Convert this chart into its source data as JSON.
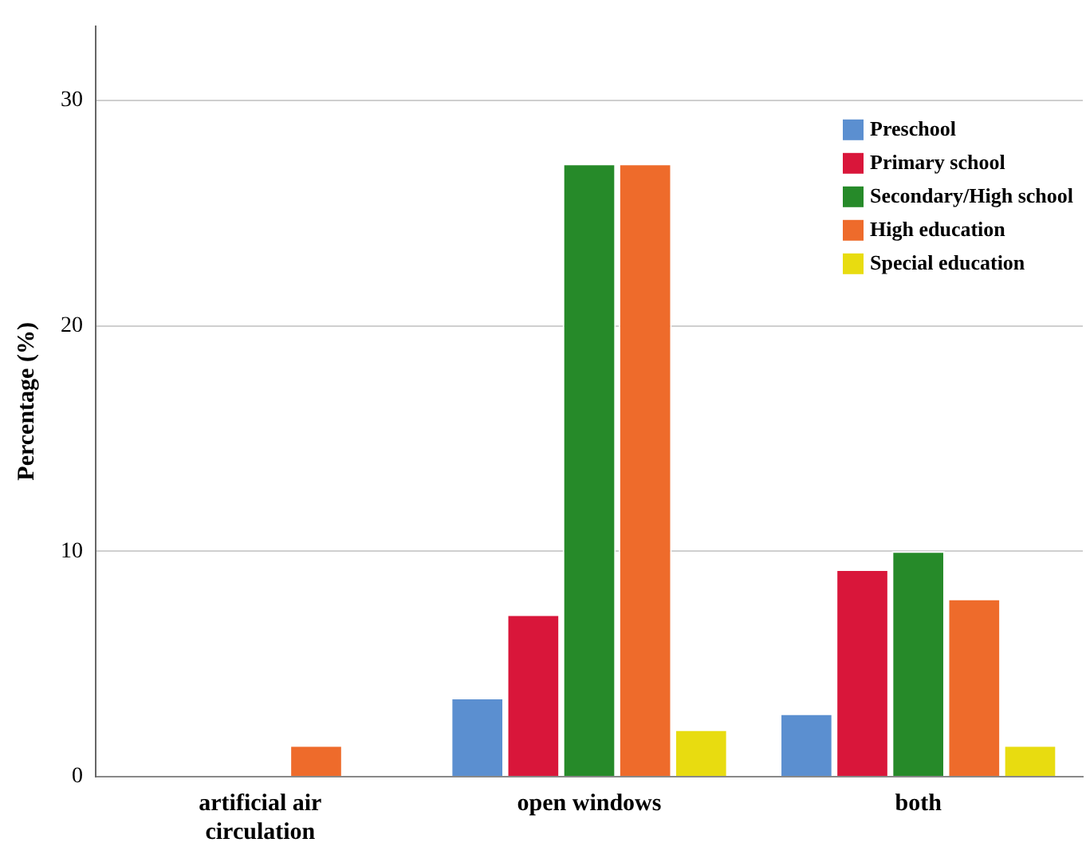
{
  "chart_data": {
    "type": "bar",
    "ylabel": "Percentage (%)",
    "categories": [
      "artificial air circulation",
      "open windows",
      "both"
    ],
    "series": [
      {
        "name": "Preschool",
        "color": "#5b8fd0",
        "values": [
          0,
          3.5,
          2.8
        ]
      },
      {
        "name": "Primary school",
        "color": "#d9163a",
        "values": [
          0,
          7.2,
          9.2
        ]
      },
      {
        "name": "Secondary/High school",
        "color": "#268a29",
        "values": [
          0,
          27.2,
          10.0
        ]
      },
      {
        "name": "High education",
        "color": "#ee6b2b",
        "values": [
          1.4,
          27.2,
          7.9
        ]
      },
      {
        "name": "Special education",
        "color": "#e8dc10",
        "values": [
          0,
          2.1,
          1.4
        ]
      }
    ],
    "ylim": [
      0,
      33.3
    ],
    "yticks": [
      0,
      10,
      20,
      30
    ],
    "grid": "y",
    "legend": "top right"
  }
}
